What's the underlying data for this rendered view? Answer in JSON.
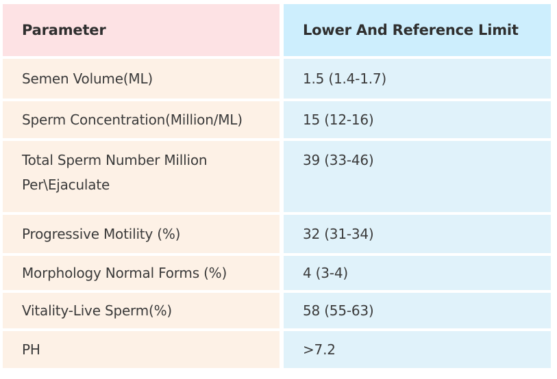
{
  "table": {
    "headers": [
      "Parameter",
      "Lower And Reference Limit"
    ],
    "rows": [
      [
        "Semen Volume(ML)",
        "1.5 (1.4-1.7)"
      ],
      [
        "Sperm Concentration(Million/ML)",
        "15 (12-16)"
      ],
      [
        "Total Sperm Number Million Per\\Ejaculate",
        "39 (33-46)"
      ],
      [
        "Progressive Motility (%)",
        "32 (31-34)"
      ],
      [
        "Morphology Normal Forms (%)",
        "4 (3-4)"
      ],
      [
        "Vitality-Live Sperm(%)",
        "58 (55-63)"
      ],
      [
        "PH",
        ">7.2"
      ]
    ]
  }
}
